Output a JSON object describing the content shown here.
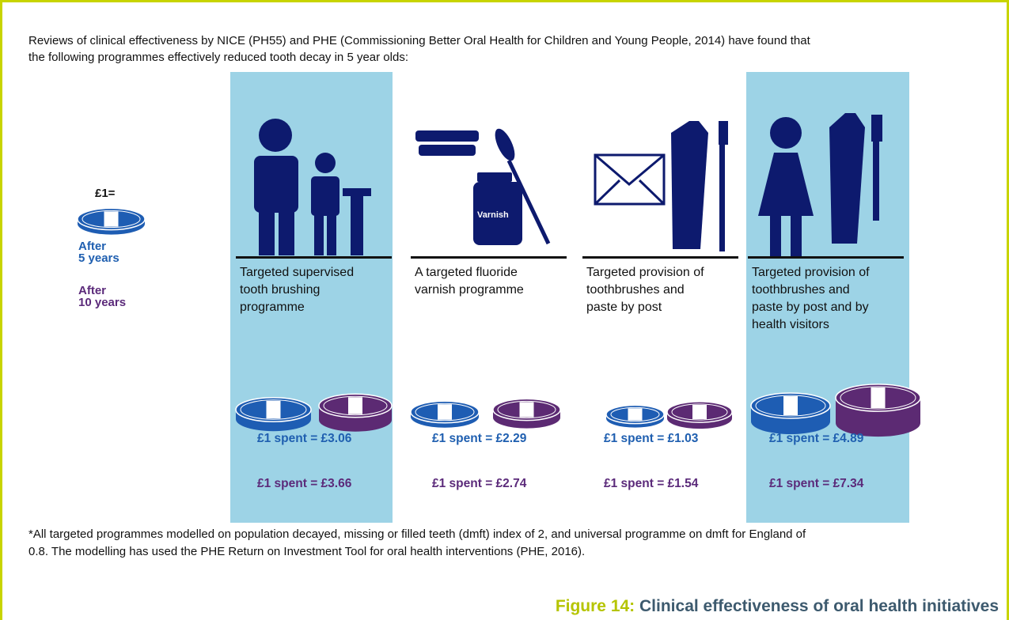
{
  "intro": [
    "Reviews of clinical effectiveness by NICE (PH55) and PHE (Commissioning Better Oral Health for Children and Young People, 2014) have found that",
    "the following programmes effectively reduced tooth decay in 5 year olds:"
  ],
  "legend": {
    "unit": "£1=",
    "after5": [
      "After",
      "5 years"
    ],
    "after10": [
      "After",
      "10 years"
    ]
  },
  "varnish_label": "Varnish",
  "programmes": [
    {
      "label": [
        "Targeted supervised",
        "tooth brushing",
        "programme"
      ],
      "spent5": "£1 spent = £3.06",
      "spent10": "£1 spent = £3.66"
    },
    {
      "label": [
        "A targeted fluoride",
        "varnish programme"
      ],
      "spent5": "£1 spent = £2.29",
      "spent10": "£1 spent = £2.74"
    },
    {
      "label": [
        "Targeted provision of",
        "toothbrushes and",
        "paste by post"
      ],
      "spent5": "£1 spent = £1.03",
      "spent10": "£1 spent = £1.54"
    },
    {
      "label": [
        "Targeted provision of",
        "toothbrushes and",
        "paste by post and by",
        "health visitors"
      ],
      "spent5": "£1 spent = £4.89",
      "spent10": "£1 spent = £7.34"
    }
  ],
  "footnote": [
    "*All targeted programmes modelled on population decayed, missing or filled teeth (dmft) index of 2, and universal programme on dmft for England of",
    "0.8. The modelling has used the PHE Return on Investment Tool for oral health interventions (PHE, 2016)."
  ],
  "caption": {
    "number": "Figure 14:",
    "title": "Clinical effectiveness of oral health initiatives"
  }
}
